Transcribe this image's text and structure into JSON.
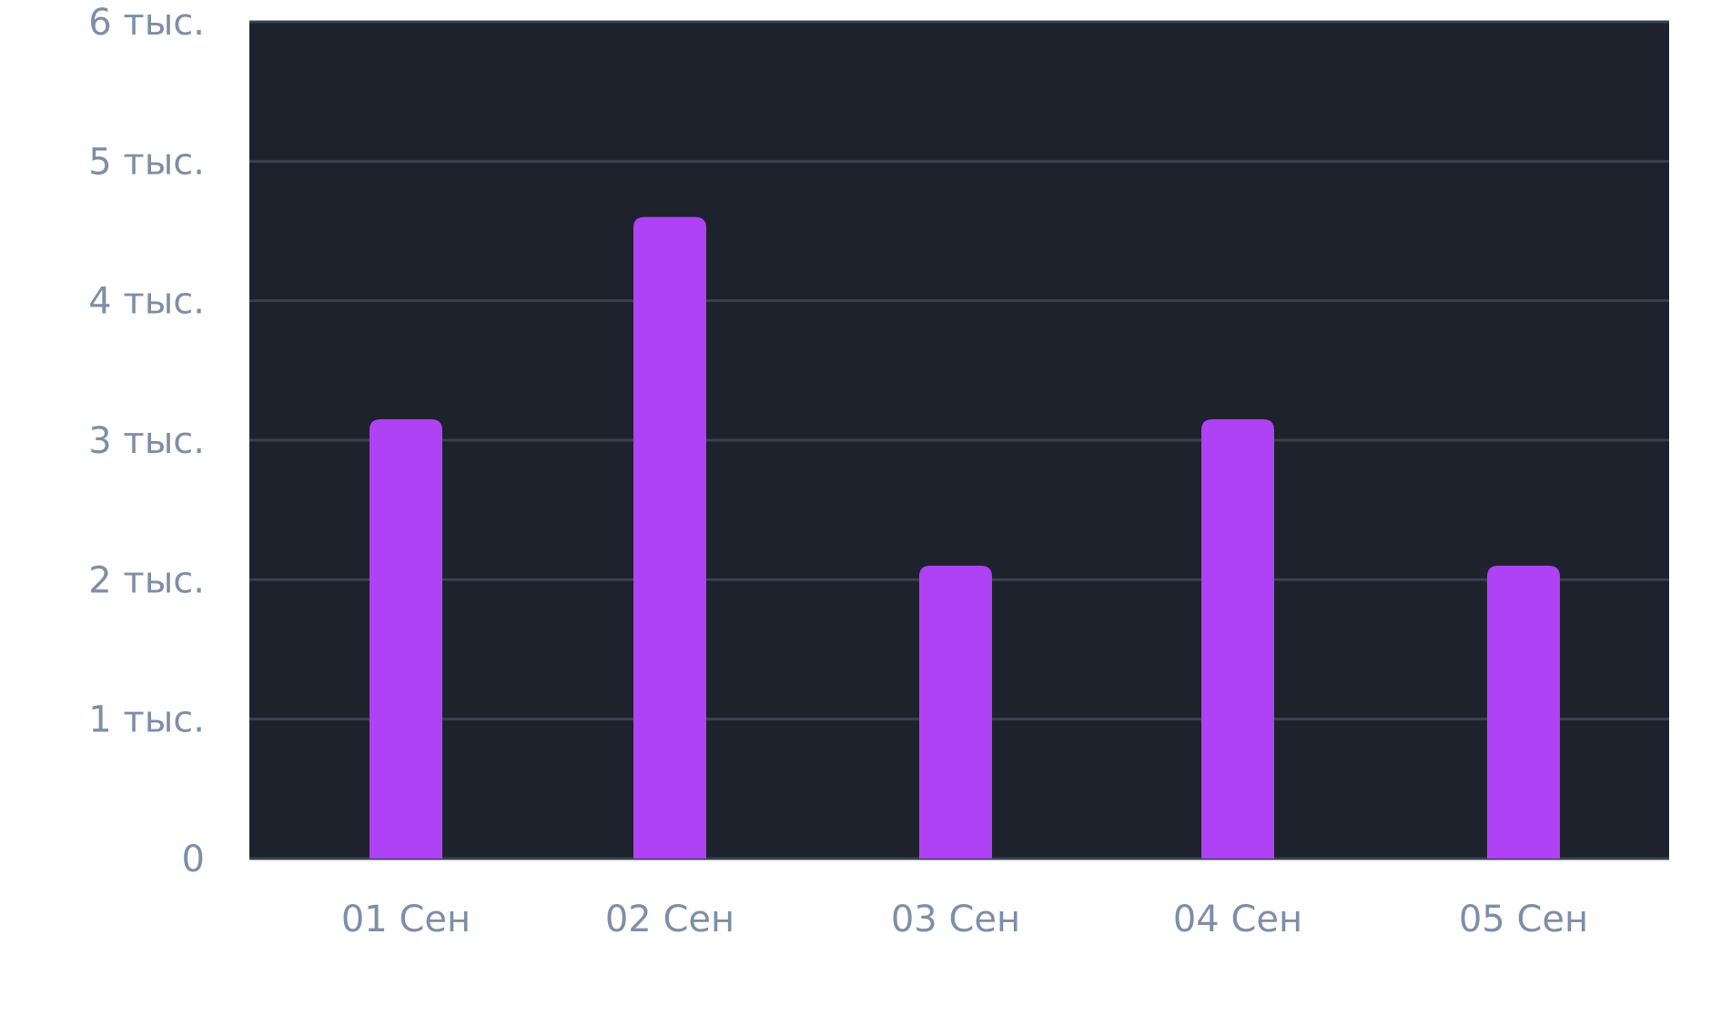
{
  "colors": {
    "plot_background": "#1e222d",
    "grid": "#3a4050",
    "bar": "#b042f5",
    "tick_text": "#7f8ea6"
  },
  "chart_data": {
    "type": "bar",
    "categories": [
      "01 Сен",
      "02 Сен",
      "03 Сен",
      "04 Сен",
      "05 Сен"
    ],
    "series": [
      {
        "values": [
          3150,
          4600,
          2100,
          3150,
          2100
        ]
      }
    ],
    "ylim": [
      0,
      6000
    ],
    "y_ticks": [
      {
        "value": 0,
        "label": "0"
      },
      {
        "value": 1000,
        "label": "1 тыс."
      },
      {
        "value": 2000,
        "label": "2 тыс."
      },
      {
        "value": 3000,
        "label": "3 тыс."
      },
      {
        "value": 4000,
        "label": "4 тыс."
      },
      {
        "value": 5000,
        "label": "5 тыс."
      },
      {
        "value": 6000,
        "label": "6 тыс."
      }
    ],
    "grid": true,
    "legend": "none"
  }
}
